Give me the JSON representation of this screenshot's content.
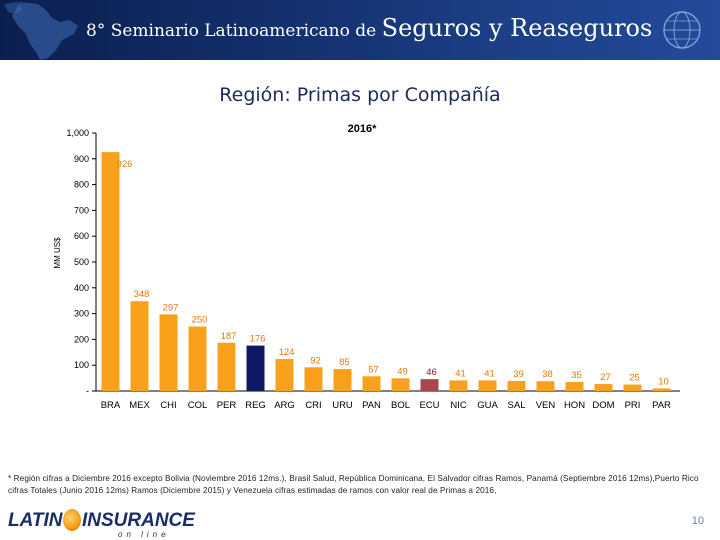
{
  "banner": {
    "prefix": "8° Seminario Latinoamericano de ",
    "main": "Seguros y Reaseguros"
  },
  "slide_title": "Región: Primas por Compañía",
  "chart_data": {
    "type": "bar",
    "title": "2016*",
    "ylabel": "MM US$",
    "ylim": [
      0,
      1000
    ],
    "yticks": [
      0,
      100,
      200,
      300,
      400,
      500,
      600,
      700,
      800,
      900,
      1000
    ],
    "ytick_labels": [
      "-",
      "100",
      "200",
      "300",
      "400",
      "500",
      "600",
      "700",
      "800",
      "900",
      "1,000"
    ],
    "categories": [
      "BRA",
      "MEX",
      "CHI",
      "COL",
      "PER",
      "REG",
      "ARG",
      "CRI",
      "URU",
      "PAN",
      "BOL",
      "ECU",
      "NIC",
      "GUA",
      "SAL",
      "VEN",
      "HON",
      "DOM",
      "PRI",
      "PAR"
    ],
    "values": [
      926,
      348,
      297,
      250,
      187,
      176,
      124,
      92,
      85,
      57,
      49,
      46,
      41,
      41,
      39,
      38,
      35,
      27,
      25,
      10
    ],
    "highlight": {
      "REG": "#0d1a63",
      "ECU": "#a8464b"
    },
    "color": "#f9a11b"
  },
  "footnote": "* Región cifras a Diciembre 2016 excepto Bolivia (Noviembre 2016 12ms.), Brasil Salud, República Dominicana, El Salvador cifras Ramos, Panamá (Septiembre 2016 12ms),Puerto Rico cifras Totales (Junio 2016 12ms) Ramos (Diciembre 2015) y Venezuela cifras estimadas de ramos con valor real de Primas a 2016,",
  "logo": {
    "latino": "LATINO",
    "insurance": "INSURANCE",
    "online": "on line"
  },
  "page_number": "10"
}
